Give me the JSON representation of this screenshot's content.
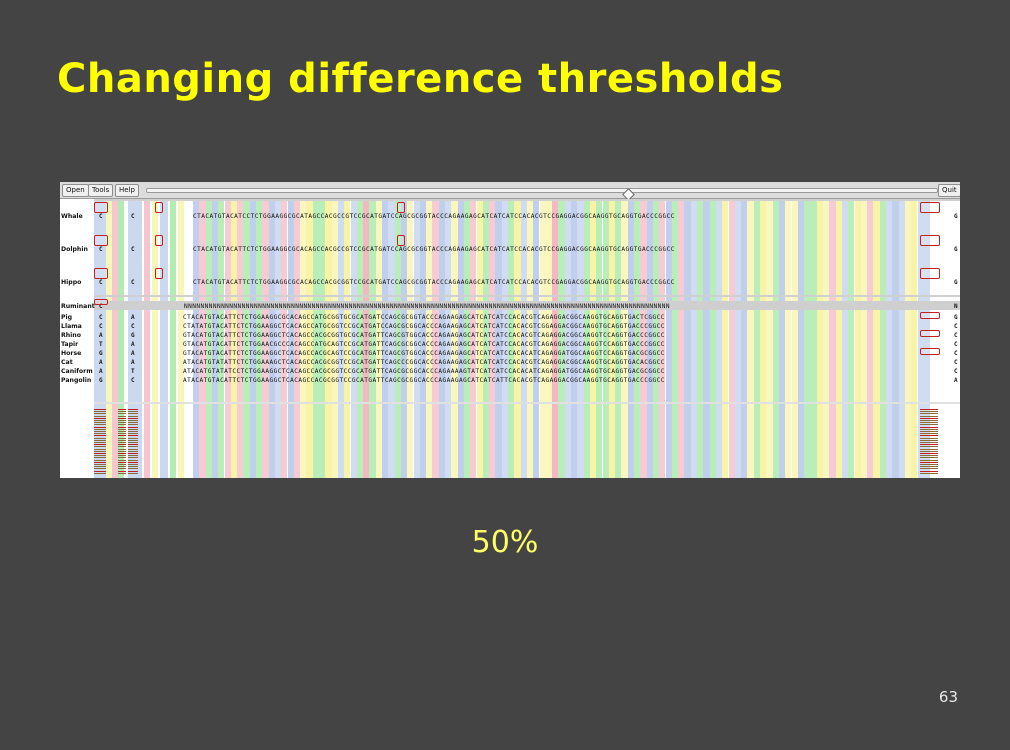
{
  "slide": {
    "title": "Changing difference thresholds",
    "threshold_label": "50%",
    "page_number": "63"
  },
  "toolbar": {
    "open_label": "Open",
    "tools_label": "Tools",
    "help_label": "Help",
    "quit_label": "Quit"
  },
  "species": [
    "Whale",
    "Dolphin",
    "Hippo",
    "Ruminant",
    "Pig",
    "Llama",
    "Rhino",
    "Tapir",
    "Horse",
    "Cat",
    "Caniform",
    "Pangolin"
  ],
  "left_chars": [
    [
      "C",
      "C"
    ],
    [
      "C",
      "C"
    ],
    [
      "C",
      "C"
    ],
    [
      "C",
      ""
    ],
    [
      "C",
      "A"
    ],
    [
      "C",
      "C"
    ],
    [
      "A",
      "G"
    ],
    [
      "T",
      "A"
    ],
    [
      "G",
      "A"
    ],
    [
      "A",
      "A"
    ],
    [
      "A",
      "T"
    ],
    [
      "G",
      "C"
    ]
  ],
  "sequences": {
    "whale": "CTACATGTACATCCTCTGGAAGGCGCATAGCCACGCCGTCCGCATGATCCAGCGCGGTACCCAGAAGAGCATCATCATCCACACGTCCGAGGACGGCAAGGTGCAGGTGACCCGGCC",
    "dolphin": "CTACATGTACATTCTCTGGAAGGCGCACAGCCACGCCGTCCGCATGATCCAGCGCGGTACCCAGAAGAGCATCATCATCCACACGTCCGAGGACGGCAAGGTGCAGGTGACCCGGCC",
    "hippo": "CTACATGTACATTCTCTGGAAGGCGCACAGCCACGCGGTCCGCATGATCCAGCGCGGTACCCAGAAGAGCATCATCATCCACACGTCCGAGGACGGCAAGGTGCAGGTGACCCGGCC",
    "ruminant": "NNNNNNNNNNNNNNNNNNNNNNNNNNNNNNNNNNNNNNNNNNNNNNNNNNNNNNNNNNNNNNNNNNNNNNNNNNNNNNNNNNNNNNNNNNNNNNNNNNNNNNNNNNNNNNNNNNNNNN",
    "pig": "CTACATGTACATTCTCTGGAAGGCGCACAGCCATGCGGTGCGCATGATCCAGCGCGGTACCCAGAAGAGCATCATCATCCACACGTCAGAGGACGGCAAGGTGCAGGTGACTCGGCC",
    "llama": "CTATATGTACATTCTCTGGAAGGCTCACAGCCATGCGGTCCGCATGATCCAGCGCGGCACCCAGAAGAGCATCATCATCCACACGTCGGAGGACGGCAAGGTGCAGGTGACCCGGCC",
    "rhino": "GTACATGTACATTCTCTGGAAGGCTCACAGCCACGCGGTGCGCATGATTCAGCGTGGCACCCAGAAGAGCATCATCATCCACACGTCAGAGGACGGCAAGGTCCAGGTGACCCGGCC",
    "tapir": "GTACATGTACATTCTCTGGAACGCCCACAGCCATGCAGTCCGCATGATTCAGCGCGGCACCCAGAAGAGCATCATCATCCACACGTCAGAGGACGGCAAGGTCCAGGTGACCCGGCC",
    "horse": "GTACATGTACATTCTCTGGAAGGCTCACAGCCACGCAGTCCGCATGATTCAGCGTGGCACCCAGAAGAGCATCATCATCCACACATCAGAGGATGGCAAGGTCCAGGTGACGCGGCC",
    "cat": "ATACATGTATATTCTCTGGAAAGCTCACAGCCACGCGGTCCGCATGATTCAGCCCGGCACCCAGAAGAGCATCATCATCCACACGTCAGAGGACGGCAAGGTGCAGGTGACACGGCC",
    "caniform": "ATACATGTATATCCTCTGGAAGGCTCACAGCCACGCGGTCCGCATGATTCAGCGCGGCACCCAGAAAAGTATCATCATCCACACATCAGAGGATGGCAAGGTGCAGGTGACGCGGCC",
    "pangolin": "ATACATGTACATTCTCTGGAAGGCTCACAGCCACGCGGTCCGCATGATTCAGCGCGGCACCCAGAAGAGCATCATCATTCACACGTCAGAGGACGGCAAGGTGCAGGTGACCCGGCC"
  },
  "right_chars": [
    "G",
    "G",
    "G",
    "N",
    "G",
    "C",
    "C",
    "C",
    "C",
    "C",
    "C",
    "A"
  ],
  "colors": {
    "title": "#ffff00",
    "threshold_label": "#ffff66",
    "background": "#444444",
    "base_a": "#7fe07f",
    "base_c": "#a9bfe6",
    "base_g": "#f4f08a",
    "base_t": "#f0a0b0",
    "highlight_box": "#c02020"
  }
}
